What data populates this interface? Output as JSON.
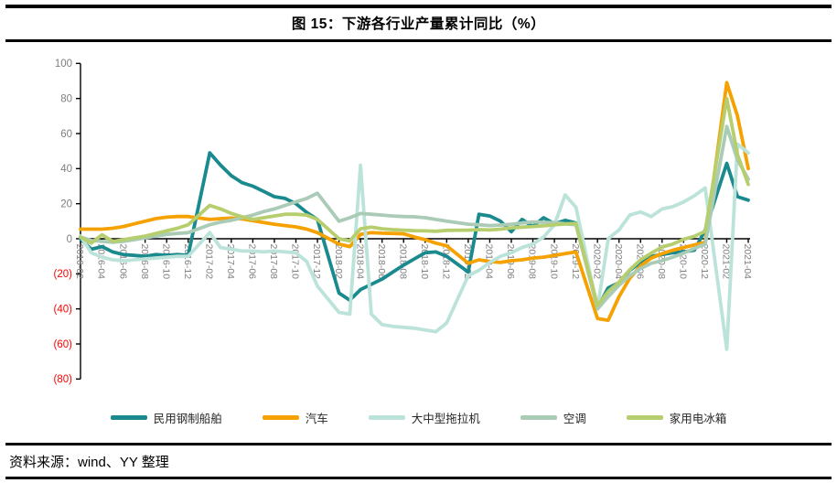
{
  "title": "图 15：下游各行业产量累计同比（%）",
  "source_note": "资料来源：wind、YY 整理",
  "chart_data": {
    "type": "line",
    "title": "图 15：下游各行业产量累计同比（%）",
    "grid": false,
    "legend_position": "bottom",
    "unit": "%",
    "x_months": [
      "2016-02",
      "2016-03",
      "2016-04",
      "2016-05",
      "2016-06",
      "2016-07",
      "2016-08",
      "2016-09",
      "2016-10",
      "2016-11",
      "2016-12",
      "2017-01",
      "2017-02",
      "2017-03",
      "2017-04",
      "2017-05",
      "2017-06",
      "2017-07",
      "2017-08",
      "2017-09",
      "2017-10",
      "2017-11",
      "2017-12",
      "2018-01",
      "2018-02",
      "2018-03",
      "2018-04",
      "2018-05",
      "2018-06",
      "2018-07",
      "2018-08",
      "2018-09",
      "2018-10",
      "2018-11",
      "2018-12",
      "2019-01",
      "2019-02",
      "2019-03",
      "2019-04",
      "2019-05",
      "2019-06",
      "2019-07",
      "2019-08",
      "2019-09",
      "2019-10",
      "2019-11",
      "2019-12",
      "2020-01",
      "2020-02",
      "2020-03",
      "2020-04",
      "2020-05",
      "2020-06",
      "2020-07",
      "2020-08",
      "2020-09",
      "2020-10",
      "2020-11",
      "2020-12",
      "2021-01",
      "2021-02",
      "2021-03",
      "2021-04"
    ],
    "x_tick_labels": [
      "2016-02",
      "2016-04",
      "2016-06",
      "2016-08",
      "2016-10",
      "2016-12",
      "2017-02",
      "2017-04",
      "2017-06",
      "2017-08",
      "2017-10",
      "2017-12",
      "2018-02",
      "2018-04",
      "2018-06",
      "2018-08",
      "2018-10",
      "2018-12",
      "2019-02",
      "2019-04",
      "2019-06",
      "2019-08",
      "2019-10",
      "2019-12",
      "2020-02",
      "2020-04",
      "2020-06",
      "2020-08",
      "2020-10",
      "2020-12",
      "2021-02",
      "2021-04"
    ],
    "y_axis": {
      "min": -80,
      "max": 100,
      "tick_values": [
        100,
        80,
        60,
        40,
        20,
        0,
        -20,
        -40,
        -60,
        -80
      ],
      "tick_labels": [
        "100",
        "80",
        "60",
        "40",
        "20",
        "0",
        "(20)",
        "(40)",
        "(60)",
        "(80)"
      ],
      "label_color": "#7F7F7F",
      "negative_label_color": "#FF0000"
    },
    "series": [
      {
        "name": "民用钢制船舶",
        "color": "#1A8A8F",
        "values": [
          0,
          -6,
          -4.5,
          -7.5,
          -9,
          -9.5,
          -10,
          -9,
          -9.5,
          -9,
          -9.5,
          null,
          49,
          42,
          36,
          32,
          30,
          27,
          24,
          23,
          20,
          15,
          11,
          null,
          -31,
          -35,
          -29,
          -26,
          -23,
          -19,
          -15,
          -11.5,
          -8,
          -7.5,
          -10,
          null,
          -19,
          14,
          13,
          10,
          4,
          11,
          7,
          12,
          8.5,
          10.5,
          9,
          null,
          -39.5,
          -28,
          -25,
          -18,
          -13.5,
          -10,
          -9,
          -8,
          -7.5,
          -6.5,
          5,
          null,
          43,
          24,
          22
        ]
      },
      {
        "name": "汽车",
        "color": "#F5A100",
        "values": [
          5.5,
          5.5,
          5.5,
          6,
          7,
          8.5,
          10,
          11.5,
          12.3,
          12.7,
          12.7,
          null,
          11,
          11.5,
          11.8,
          11.3,
          10.3,
          9.3,
          8.3,
          7.5,
          6.8,
          5.5,
          3.5,
          null,
          -3,
          -4.5,
          2.5,
          3.5,
          3.2,
          3,
          2.8,
          1,
          -0.5,
          -2.5,
          -4,
          null,
          -14,
          -12,
          -13,
          -13.5,
          -12.5,
          -12,
          -11,
          -10.5,
          -9.5,
          -8.5,
          -7.5,
          null,
          -45.5,
          -46.5,
          -33,
          -22.5,
          -15.5,
          -11,
          -8.5,
          -6.5,
          -5,
          -3.5,
          -2,
          null,
          89,
          70,
          40
        ]
      },
      {
        "name": "大中型拖拉机",
        "color": "#BCE3DA",
        "values": [
          1.5,
          -8,
          -10.5,
          -12,
          -12.5,
          -12,
          -11.5,
          -11,
          -10.5,
          -10,
          -10,
          null,
          3.5,
          -5,
          -6,
          -7,
          -7,
          -7.5,
          -7,
          -7.5,
          -8,
          -13,
          -27,
          null,
          -42,
          -43,
          42,
          -43,
          -49,
          -50,
          -50.5,
          -51,
          -52,
          -53,
          -48,
          null,
          -21,
          -18,
          -13.5,
          -10,
          -8,
          -5,
          -3,
          1,
          8,
          25,
          18,
          null,
          -39.5,
          0,
          5,
          13.5,
          15.3,
          12.7,
          17,
          18.3,
          21,
          24.5,
          29,
          null,
          -63,
          54,
          49
        ]
      },
      {
        "name": "空调",
        "color": "#AACBB6",
        "values": [
          1,
          -1,
          -1.5,
          -2,
          -1.5,
          -0.5,
          0.5,
          1.5,
          2.5,
          3,
          3.5,
          null,
          8,
          9.5,
          10.5,
          12,
          13.5,
          15.5,
          17,
          19,
          21,
          23,
          26,
          null,
          10,
          12,
          14.4,
          14,
          13.5,
          13,
          12.7,
          12.5,
          12,
          11,
          10,
          null,
          8.3,
          8,
          7.5,
          7.8,
          8.3,
          9,
          9.6,
          9.4,
          9.2,
          8.5,
          8,
          null,
          -40,
          -33,
          -26.5,
          -21,
          -17,
          -14,
          -12.5,
          -10.5,
          -8.2,
          -5.5,
          -3,
          null,
          64,
          45,
          34
        ]
      },
      {
        "name": "家用电冰箱",
        "color": "#B6CE6E",
        "values": [
          1,
          -2.5,
          2.3,
          -1.5,
          -0.5,
          0.5,
          1.5,
          3,
          4.5,
          6,
          8,
          null,
          19,
          17,
          14.5,
          12.5,
          11,
          12,
          13,
          14,
          14,
          13.5,
          11,
          null,
          0,
          -1.2,
          5.7,
          6.6,
          5.7,
          5.2,
          4.9,
          4.6,
          4.5,
          4.3,
          4.8,
          null,
          4.9,
          5.2,
          5,
          5.5,
          6.2,
          6.6,
          7,
          7.4,
          8,
          8.4,
          8.8,
          null,
          -38,
          -30,
          -24.7,
          -17.7,
          -12,
          -8.2,
          -4.7,
          -3,
          -0.3,
          1.4,
          4.3,
          null,
          80,
          48,
          31
        ]
      }
    ]
  }
}
